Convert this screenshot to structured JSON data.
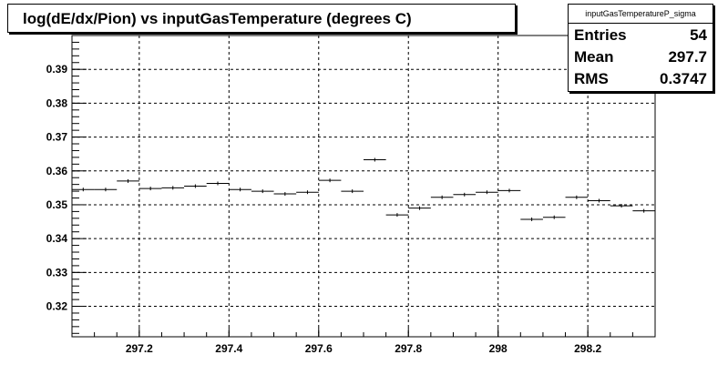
{
  "title": "log(dE/dx/Pion) vs inputGasTemperature (degrees C)",
  "stats": {
    "name": "inputGasTemperatureP_sigma",
    "rows": [
      {
        "label": "Entries",
        "value": "54"
      },
      {
        "label": "Mean",
        "value": "297.7"
      },
      {
        "label": "RMS",
        "value": "0.3747"
      }
    ]
  },
  "chart_data": {
    "type": "scatter",
    "title": "log(dE/dx/Pion) vs inputGasTemperature (degrees C)",
    "xlabel": "",
    "ylabel": "",
    "xlim": [
      297.05,
      298.35
    ],
    "ylim": [
      0.311,
      0.4
    ],
    "grid": true,
    "x_ticks": [
      "297.2",
      "297.4",
      "297.6",
      "297.8",
      "298",
      "298.2"
    ],
    "x_tick_values": [
      297.2,
      297.4,
      297.6,
      297.8,
      298.0,
      298.2
    ],
    "y_ticks": [
      "0.32",
      "0.33",
      "0.34",
      "0.35",
      "0.36",
      "0.37",
      "0.38",
      "0.39"
    ],
    "y_tick_values": [
      0.32,
      0.33,
      0.34,
      0.35,
      0.36,
      0.37,
      0.38,
      0.39
    ],
    "bin_width": 0.05,
    "points": [
      {
        "x": 297.075,
        "y": 0.3545
      },
      {
        "x": 297.125,
        "y": 0.3545
      },
      {
        "x": 297.175,
        "y": 0.357
      },
      {
        "x": 297.225,
        "y": 0.3548
      },
      {
        "x": 297.275,
        "y": 0.355
      },
      {
        "x": 297.325,
        "y": 0.3555
      },
      {
        "x": 297.375,
        "y": 0.3563
      },
      {
        "x": 297.425,
        "y": 0.3545
      },
      {
        "x": 297.475,
        "y": 0.354
      },
      {
        "x": 297.525,
        "y": 0.3532
      },
      {
        "x": 297.575,
        "y": 0.3537
      },
      {
        "x": 297.625,
        "y": 0.3572
      },
      {
        "x": 297.675,
        "y": 0.354
      },
      {
        "x": 297.725,
        "y": 0.3633
      },
      {
        "x": 297.775,
        "y": 0.347
      },
      {
        "x": 297.825,
        "y": 0.349
      },
      {
        "x": 297.875,
        "y": 0.3522
      },
      {
        "x": 297.925,
        "y": 0.353
      },
      {
        "x": 297.975,
        "y": 0.3537
      },
      {
        "x": 298.025,
        "y": 0.3542
      },
      {
        "x": 298.075,
        "y": 0.3457
      },
      {
        "x": 298.125,
        "y": 0.3463
      },
      {
        "x": 298.175,
        "y": 0.3522
      },
      {
        "x": 298.225,
        "y": 0.3512
      },
      {
        "x": 298.275,
        "y": 0.3497
      },
      {
        "x": 298.325,
        "y": 0.3482
      }
    ]
  }
}
